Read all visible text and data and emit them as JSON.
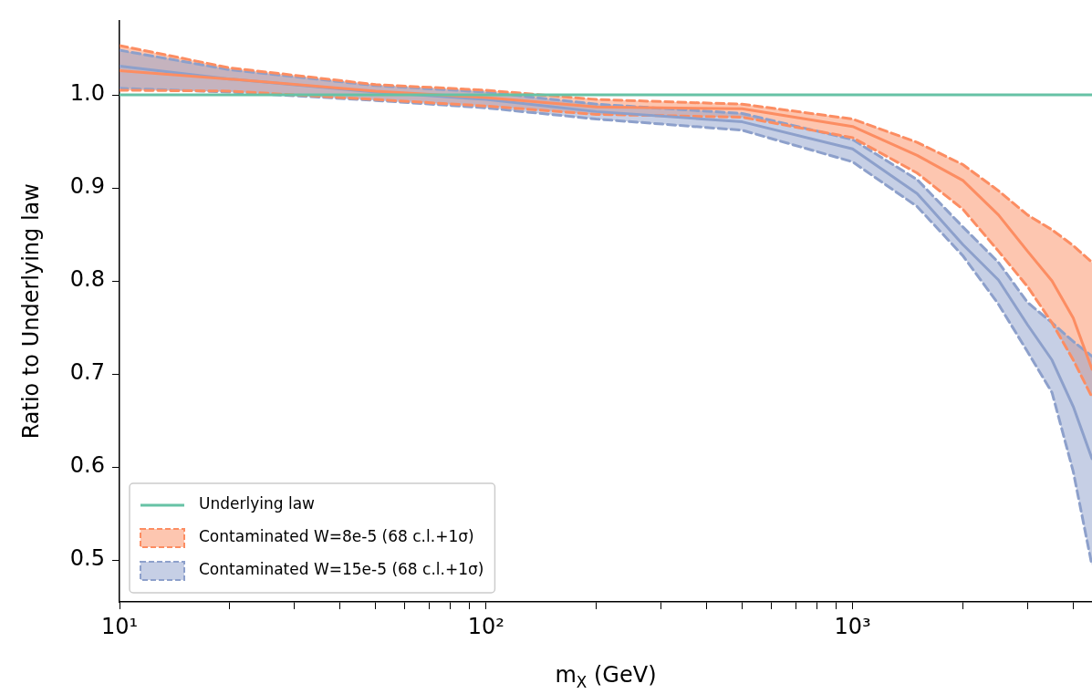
{
  "chart_data": {
    "type": "line",
    "xlabel": "m$_{X}$ (GeV)",
    "ylabel": "Ratio to Underlying law",
    "log": "x",
    "grid": false,
    "legend": "bottom left",
    "marker": "none",
    "xlim": [
      10,
      4500
    ],
    "ylim": [
      0.455,
      1.08
    ],
    "xticks": [
      {
        "value": 10,
        "label": "10¹"
      },
      {
        "value": 20,
        "label": null
      },
      {
        "value": 30,
        "label": null
      },
      {
        "value": 40,
        "label": null
      },
      {
        "value": 50,
        "label": null
      },
      {
        "value": 60,
        "label": null
      },
      {
        "value": 70,
        "label": null
      },
      {
        "value": 80,
        "label": null
      },
      {
        "value": 90,
        "label": null
      },
      {
        "value": 100,
        "label": "10²"
      },
      {
        "value": 200,
        "label": null
      },
      {
        "value": 300,
        "label": null
      },
      {
        "value": 400,
        "label": null
      },
      {
        "value": 500,
        "label": null
      },
      {
        "value": 600,
        "label": null
      },
      {
        "value": 700,
        "label": null
      },
      {
        "value": 800,
        "label": null
      },
      {
        "value": 900,
        "label": null
      },
      {
        "value": 1000,
        "label": "10³"
      },
      {
        "value": 2000,
        "label": null
      },
      {
        "value": 3000,
        "label": null
      },
      {
        "value": 4000,
        "label": null
      }
    ],
    "yticks": [
      0.5,
      0.6,
      0.7,
      0.8,
      0.9,
      {
        "value": 1,
        "label": "1.0"
      }
    ],
    "x": [
      10,
      20,
      50,
      100,
      200,
      500,
      1000,
      1500,
      2000,
      2500,
      3000,
      3500,
      4000,
      4500
    ],
    "series": [
      {
        "name": "Underlying law",
        "color": "#66c2a5",
        "values": [
          1,
          1,
          1,
          1,
          1,
          1,
          1,
          1,
          1,
          1,
          1,
          1,
          1,
          1
        ]
      },
      {
        "name": "Contaminated W=8e-5 (68 c.l.+1σ)",
        "color": "#fc8d62",
        "values": [
          1.026,
          1.017,
          1.004,
          0.997,
          0.987,
          0.985,
          0.966,
          0.935,
          0.908,
          0.871,
          0.832,
          0.8,
          0.76,
          0.705
        ],
        "lower": [
          1.005,
          1.004,
          0.995,
          0.988,
          0.979,
          0.976,
          0.954,
          0.916,
          0.877,
          0.832,
          0.794,
          0.755,
          0.715,
          0.675
        ],
        "upper": [
          1.053,
          1.029,
          1.011,
          1.005,
          0.995,
          0.99,
          0.974,
          0.949,
          0.925,
          0.897,
          0.871,
          0.855,
          0.838,
          0.82
        ],
        "line_style": "solid"
      },
      {
        "name": "Contaminated W=15e-5 (68 c.l.+1σ)",
        "color": "#8da0cb",
        "values": [
          1.031,
          1.017,
          1.003,
          0.995,
          0.982,
          0.971,
          0.942,
          0.894,
          0.839,
          0.801,
          0.753,
          0.715,
          0.665,
          0.609
        ],
        "lower": [
          1.007,
          1.003,
          0.994,
          0.986,
          0.974,
          0.962,
          0.928,
          0.88,
          0.827,
          0.775,
          0.724,
          0.68,
          0.595,
          0.494
        ],
        "upper": [
          1.048,
          1.027,
          1.01,
          1.003,
          0.99,
          0.98,
          0.952,
          0.909,
          0.858,
          0.82,
          0.777,
          0.755,
          0.735,
          0.719
        ],
        "line_style": "solid"
      },
      {
        "color": "#fc8d62",
        "line_style": "dashed",
        "values": [
          1.053,
          1.029,
          1.011,
          1.005,
          0.995,
          0.99,
          0.974,
          0.949,
          0.925,
          0.897,
          0.871,
          0.855,
          0.838,
          0.82
        ]
      },
      {
        "color": "#fc8d62",
        "line_style": "dashed",
        "values": [
          1.005,
          1.004,
          0.995,
          0.988,
          0.979,
          0.976,
          0.954,
          0.916,
          0.877,
          0.832,
          0.794,
          0.755,
          0.715,
          0.675
        ]
      },
      {
        "color": "#8da0cb",
        "line_style": "dashed",
        "values": [
          1.048,
          1.027,
          1.01,
          1.003,
          0.99,
          0.98,
          0.952,
          0.909,
          0.858,
          0.82,
          0.777,
          0.755,
          0.735,
          0.719
        ]
      },
      {
        "color": "#8da0cb",
        "line_style": "dashed",
        "values": [
          1.007,
          1.003,
          0.994,
          0.986,
          0.974,
          0.962,
          0.928,
          0.88,
          0.827,
          0.775,
          0.724,
          0.68,
          0.595,
          0.494
        ]
      }
    ]
  }
}
